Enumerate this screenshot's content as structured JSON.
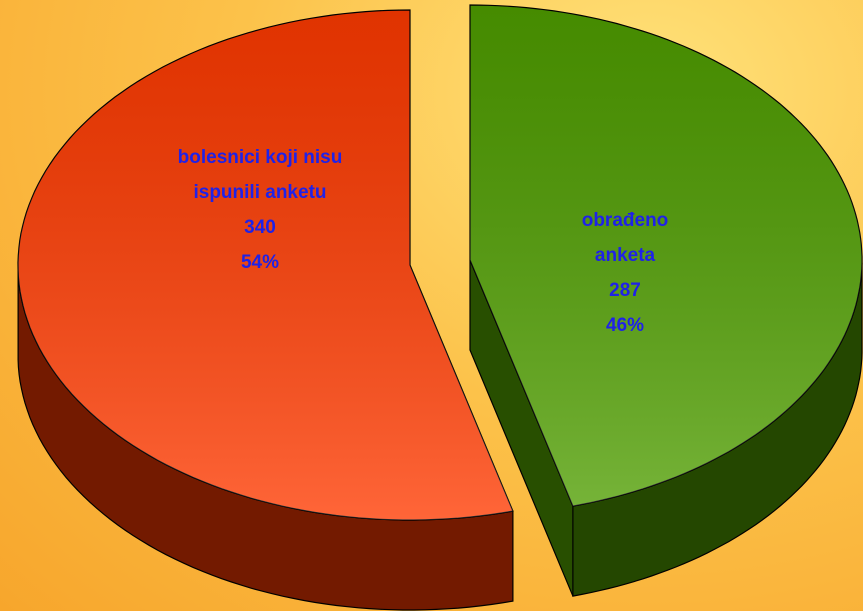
{
  "chart_data": {
    "type": "pie",
    "categories": [
      "bolesnici koji nisu ispunili anketu",
      "obrađeno anketa"
    ],
    "values": [
      340,
      287
    ],
    "value_labels": [
      "340",
      "287"
    ],
    "percent_labels": [
      "54%",
      "46%"
    ],
    "colors": [
      "#ff3a00",
      "#4f9e00"
    ]
  }
}
